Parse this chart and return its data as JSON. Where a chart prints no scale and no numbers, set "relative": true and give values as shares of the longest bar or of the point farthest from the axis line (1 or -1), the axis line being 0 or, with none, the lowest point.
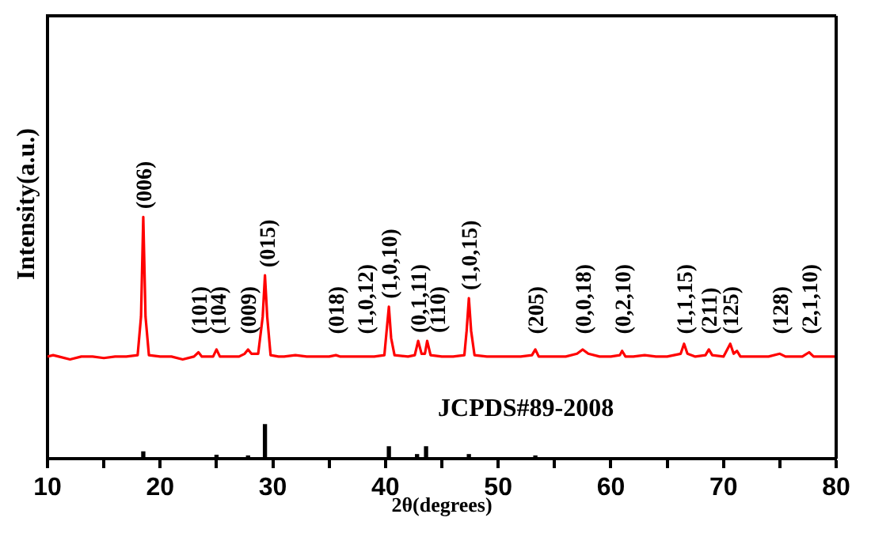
{
  "chart_data": [
    {
      "type": "line",
      "ylabel": "Intensity(a.u.)",
      "relative": true,
      "tick_labels": false,
      "xlim": [
        10,
        80
      ],
      "series": [
        {
          "color": "#ff0000",
          "x": [
            10,
            10.5,
            11,
            12,
            13,
            14,
            15,
            16,
            17,
            18,
            18.3,
            18.5,
            18.7,
            19,
            20,
            21,
            22,
            23,
            23.4,
            23.7,
            24.7,
            25,
            25.3,
            26,
            27,
            27.5,
            27.8,
            28.1,
            28.7,
            29.1,
            29.3,
            29.5,
            29.8,
            30.5,
            31,
            32,
            33,
            34,
            35,
            35.6,
            36,
            37,
            38,
            39,
            39.9,
            40.1,
            40.3,
            40.5,
            40.8,
            42,
            42.6,
            42.9,
            43.2,
            43.5,
            43.7,
            44,
            45,
            46,
            47,
            47.2,
            47.4,
            47.6,
            47.9,
            49,
            50,
            51,
            52,
            53,
            53.3,
            53.6,
            55,
            56,
            57,
            57.5,
            58,
            59,
            60,
            60.8,
            61,
            61.3,
            62,
            63,
            64,
            65,
            66.2,
            66.5,
            66.8,
            67.5,
            68.4,
            68.7,
            69,
            70,
            70.6,
            70.9,
            71.2,
            71.5,
            72,
            73,
            74,
            75,
            75.5,
            76,
            77,
            77.6,
            78,
            79,
            80
          ],
          "values": [
            0.02,
            0.03,
            0.02,
            0,
            0.02,
            0.02,
            0.01,
            0.02,
            0.02,
            0.03,
            0.3,
            1,
            0.3,
            0.03,
            0.02,
            0.02,
            0,
            0.02,
            0.05,
            0.02,
            0.02,
            0.07,
            0.02,
            0.02,
            0.02,
            0.04,
            0.07,
            0.04,
            0.04,
            0.3,
            0.59,
            0.3,
            0.03,
            0.02,
            0.02,
            0.03,
            0.02,
            0.02,
            0.02,
            0.03,
            0.02,
            0.02,
            0.02,
            0.02,
            0.03,
            0.2,
            0.37,
            0.15,
            0.03,
            0.02,
            0.03,
            0.13,
            0.04,
            0.04,
            0.13,
            0.03,
            0.02,
            0.02,
            0.03,
            0.2,
            0.43,
            0.2,
            0.03,
            0.02,
            0.02,
            0.02,
            0.02,
            0.03,
            0.07,
            0.02,
            0.02,
            0.02,
            0.04,
            0.07,
            0.04,
            0.02,
            0.02,
            0.03,
            0.06,
            0.02,
            0.02,
            0.03,
            0.02,
            0.02,
            0.04,
            0.11,
            0.04,
            0.02,
            0.03,
            0.07,
            0.03,
            0.02,
            0.11,
            0.04,
            0.06,
            0.02,
            0.02,
            0.02,
            0.02,
            0.04,
            0.02,
            0.02,
            0.02,
            0.05,
            0.02,
            0.02,
            0.02
          ]
        }
      ],
      "annotations": [
        {
          "text": "(006)",
          "x": 18.5,
          "y": 1
        },
        {
          "text": "(101)",
          "x": 23.4,
          "y": 0.05
        },
        {
          "text": "(104)",
          "x": 25,
          "y": 0.07
        },
        {
          "text": "(009)",
          "x": 27.8,
          "y": 0.07
        },
        {
          "text": "(015)",
          "x": 29.3,
          "y": 0.59
        },
        {
          "text": "(018)",
          "x": 35.6,
          "y": 0.03
        },
        {
          "text": "(1,0,12)",
          "x": 38.2,
          "y": 0.02
        },
        {
          "text": "(1,0,10)",
          "x": 40.3,
          "y": 0.37
        },
        {
          "text": "(0,1,11)",
          "x": 42.9,
          "y": 0.13
        },
        {
          "text": "(110)",
          "x": 43.7,
          "y": 0.13
        },
        {
          "text": "(1,0,15)",
          "x": 47.4,
          "y": 0.43
        },
        {
          "text": "(205)",
          "x": 53.3,
          "y": 0.07
        },
        {
          "text": "(0,0,18)",
          "x": 57.5,
          "y": 0.07
        },
        {
          "text": "(0,2,10)",
          "x": 61,
          "y": 0.06
        },
        {
          "text": "(1,1,15)",
          "x": 66.5,
          "y": 0.11
        },
        {
          "text": "(211)",
          "x": 68.7,
          "y": 0.07
        },
        {
          "text": "(125)",
          "x": 70.6,
          "y": 0.11
        },
        {
          "text": "(128)",
          "x": 75,
          "y": 0.04
        },
        {
          "text": "(2,1,10)",
          "x": 77.6,
          "y": 0.05
        }
      ]
    },
    {
      "type": "bar",
      "xlabel": "2θ(degrees)",
      "relative": true,
      "tick_labels": "x",
      "xlim": [
        10,
        80
      ],
      "xticks": [
        10,
        {
          "value": 15,
          "label": null
        },
        20,
        {
          "value": 25,
          "label": null
        },
        30,
        {
          "value": 35,
          "label": null
        },
        40,
        {
          "value": 45,
          "label": null
        },
        50,
        {
          "value": 55,
          "label": null
        },
        60,
        {
          "value": 65,
          "label": null
        },
        70,
        {
          "value": 75,
          "label": null
        },
        80
      ],
      "series": [
        {
          "color": "#000000",
          "x": [
            18.5,
            25,
            27.8,
            29.3,
            40.3,
            42.8,
            43.6,
            47.4,
            53.3
          ],
          "values": [
            0.2,
            0.1,
            0.08,
            1,
            0.35,
            0.12,
            0.35,
            0.12,
            0.08
          ]
        }
      ],
      "annotations": [
        "JCPDS#89-2008"
      ]
    }
  ]
}
